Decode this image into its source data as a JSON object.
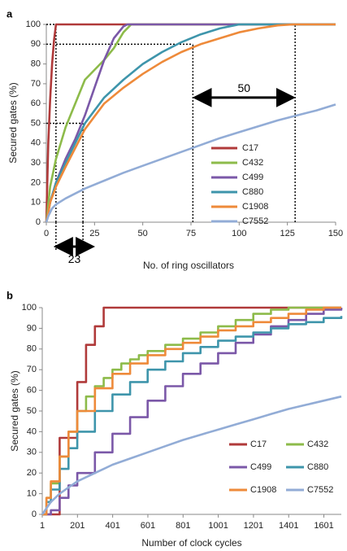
{
  "colors": {
    "C17": "#b03a3a",
    "C432": "#8dbb4a",
    "C499": "#7b58a8",
    "C880": "#3e95ab",
    "C1908": "#ee8a3a",
    "C7552": "#92acd6"
  },
  "chart_data": [
    {
      "panel_label": "a",
      "type": "line",
      "xlabel": "No. of ring oscillators",
      "ylabel": "Secured gates (%)",
      "xlim": [
        0,
        150
      ],
      "ylim": [
        0,
        100
      ],
      "xticks": [
        "0",
        "25",
        "50",
        "75",
        "100",
        "125",
        "150"
      ],
      "yticks": [
        "0",
        "10",
        "20",
        "30",
        "40",
        "50",
        "60",
        "70",
        "80",
        "90",
        "100"
      ],
      "legend_position": "right",
      "annotations": [
        "50",
        "23"
      ],
      "guide_lines": [
        {
          "kind": "vertical",
          "x": 5,
          "from_y": 0,
          "to_y": 100
        },
        {
          "kind": "horizontal",
          "y": 100,
          "from_x": 0,
          "to_x": 129
        },
        {
          "kind": "horizontal",
          "y": 90,
          "from_x": 0,
          "to_x": 76
        },
        {
          "kind": "horizontal",
          "y": 50,
          "from_x": 0,
          "to_x": 19
        },
        {
          "kind": "vertical",
          "x": 19,
          "from_y": 0,
          "to_y": 50
        },
        {
          "kind": "vertical",
          "x": 76,
          "from_y": 0,
          "to_y": 90
        },
        {
          "kind": "vertical",
          "x": 129,
          "from_y": 0,
          "to_y": 100
        }
      ],
      "series": [
        {
          "name": "C17",
          "x": [
            0,
            1,
            2,
            3,
            4,
            5,
            150
          ],
          "y": [
            0,
            40,
            62,
            80,
            92,
            100,
            100
          ]
        },
        {
          "name": "C432",
          "x": [
            0,
            2,
            5,
            10,
            15,
            20,
            25,
            30,
            35,
            40,
            44,
            150
          ],
          "y": [
            0,
            18,
            32,
            48,
            60,
            72,
            77,
            82,
            88,
            96,
            100,
            100
          ]
        },
        {
          "name": "C499",
          "x": [
            0,
            2,
            5,
            10,
            15,
            20,
            25,
            30,
            35,
            40,
            42,
            150
          ],
          "y": [
            0,
            10,
            20,
            32,
            42,
            54,
            68,
            82,
            93,
            99,
            100,
            100
          ]
        },
        {
          "name": "C880",
          "x": [
            0,
            2,
            5,
            10,
            20,
            30,
            40,
            50,
            60,
            70,
            80,
            90,
            100,
            150
          ],
          "y": [
            0,
            10,
            20,
            30,
            50,
            63,
            72,
            80,
            86,
            91,
            95,
            98,
            100,
            100
          ]
        },
        {
          "name": "C1908",
          "x": [
            0,
            2,
            5,
            10,
            20,
            30,
            40,
            50,
            60,
            70,
            80,
            90,
            100,
            110,
            120,
            128,
            150
          ],
          "y": [
            0,
            10,
            18,
            28,
            47,
            60,
            68,
            75,
            81,
            86,
            90,
            93,
            96,
            98,
            99.5,
            100,
            100
          ]
        },
        {
          "name": "C7552",
          "x": [
            0,
            1,
            3,
            5,
            10,
            20,
            30,
            40,
            50,
            60,
            70,
            80,
            90,
            100,
            110,
            120,
            130,
            140,
            150
          ],
          "y": [
            0,
            3,
            7,
            9,
            12,
            17,
            21,
            25,
            28.5,
            32,
            35.5,
            39,
            42.5,
            45.5,
            48.5,
            51.5,
            54,
            56.5,
            59.5
          ]
        }
      ]
    },
    {
      "panel_label": "b",
      "type": "line",
      "xlabel": "Number of clock cycles",
      "ylabel": "Secured gates (%)",
      "xlim": [
        1,
        1700
      ],
      "ylim": [
        0,
        100
      ],
      "xticks": [
        "1",
        "201",
        "401",
        "601",
        "801",
        "1001",
        "1201",
        "1401",
        "1601"
      ],
      "yticks": [
        "0",
        "10",
        "20",
        "30",
        "40",
        "50",
        "60",
        "70",
        "80",
        "90",
        "100"
      ],
      "legend_position": "bottom-right",
      "series": [
        {
          "name": "C17",
          "step": true,
          "x": [
            1,
            50,
            100,
            150,
            200,
            250,
            300,
            350,
            1700
          ],
          "y": [
            0,
            0,
            37,
            37,
            64,
            82,
            91,
            100,
            100
          ]
        },
        {
          "name": "C432",
          "step": true,
          "x": [
            1,
            25,
            50,
            100,
            150,
            200,
            250,
            300,
            350,
            400,
            450,
            500,
            550,
            600,
            700,
            800,
            900,
            1000,
            1100,
            1200,
            1300,
            1400,
            1450,
            1700
          ],
          "y": [
            0,
            8,
            15,
            28,
            40,
            50,
            57,
            62,
            66,
            70,
            73,
            75,
            77,
            79,
            82,
            85,
            88,
            91,
            94,
            97,
            99,
            100,
            100,
            100
          ]
        },
        {
          "name": "C499",
          "step": true,
          "x": [
            1,
            50,
            100,
            150,
            200,
            300,
            400,
            500,
            600,
            700,
            800,
            900,
            1000,
            1100,
            1200,
            1300,
            1400,
            1500,
            1600,
            1700
          ],
          "y": [
            0,
            2,
            8,
            14,
            20,
            30,
            39,
            47,
            55,
            62,
            68,
            73,
            78,
            83,
            87,
            91,
            94,
            97,
            99,
            100
          ]
        },
        {
          "name": "C880",
          "step": true,
          "x": [
            1,
            25,
            50,
            100,
            150,
            200,
            300,
            400,
            500,
            600,
            700,
            800,
            900,
            1000,
            1100,
            1200,
            1300,
            1400,
            1500,
            1600,
            1700
          ],
          "y": [
            0,
            6,
            12,
            22,
            32,
            40,
            50,
            58,
            64,
            70,
            74,
            78,
            81,
            84,
            86,
            88,
            90,
            92,
            93,
            95,
            96
          ]
        },
        {
          "name": "C1908",
          "step": true,
          "x": [
            1,
            25,
            50,
            100,
            150,
            200,
            300,
            400,
            500,
            600,
            700,
            800,
            900,
            1000,
            1100,
            1200,
            1300,
            1400,
            1500,
            1600,
            1700
          ],
          "y": [
            0,
            8,
            16,
            28,
            40,
            50,
            61,
            68,
            73,
            77,
            80,
            83,
            86,
            89,
            91,
            93,
            95,
            97,
            99,
            100,
            100
          ]
        },
        {
          "name": "C7552",
          "step": false,
          "x": [
            1,
            50,
            100,
            200,
            300,
            400,
            500,
            600,
            700,
            800,
            900,
            1000,
            1100,
            1200,
            1300,
            1400,
            1500,
            1600,
            1700
          ],
          "y": [
            0,
            6,
            10,
            16,
            20,
            24,
            27,
            30,
            33,
            36,
            38.5,
            41,
            43.5,
            46,
            48.5,
            51,
            53,
            55,
            57
          ]
        }
      ]
    }
  ]
}
